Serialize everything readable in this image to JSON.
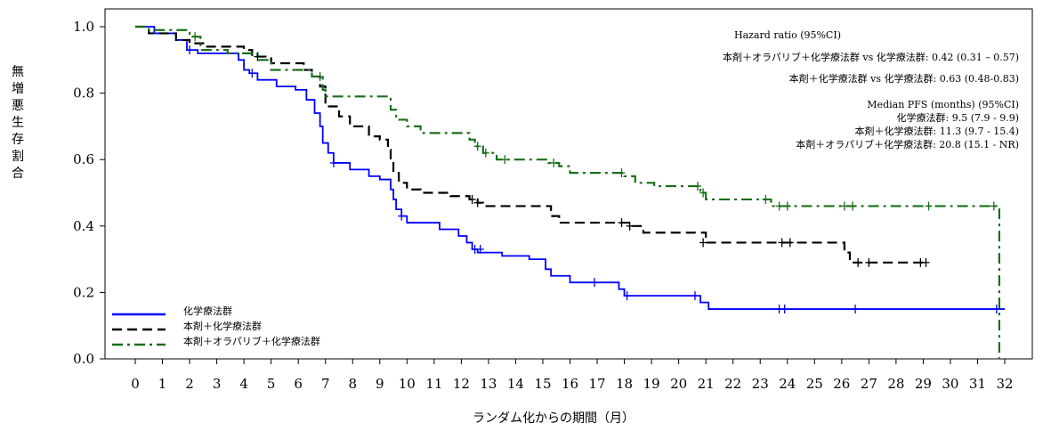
{
  "chart_data": {
    "type": "line",
    "subtype": "kaplan-meier",
    "title": "",
    "xlabel": "ランダム化からの期間（月）",
    "ylabel": "無増悪生存割合",
    "xlim": [
      -1,
      32.6
    ],
    "ylim": [
      0,
      1.05
    ],
    "x_ticks": [
      0,
      1,
      2,
      3,
      4,
      5,
      6,
      7,
      8,
      9,
      10,
      11,
      12,
      13,
      14,
      15,
      16,
      17,
      18,
      19,
      20,
      21,
      22,
      23,
      24,
      25,
      26,
      27,
      28,
      29,
      30,
      31,
      32
    ],
    "x_tick_labels": [
      "0",
      "1",
      "2",
      "3",
      "4",
      "5",
      "6",
      "7",
      "8",
      "9",
      "10",
      "11",
      "12",
      "13",
      "14",
      "15",
      "16",
      "17",
      "18",
      "19",
      "20",
      "21",
      "22",
      "23",
      "24",
      "25",
      "26",
      "27",
      "28",
      "29",
      "30",
      "31",
      "32"
    ],
    "y_ticks": [
      0,
      0.2,
      0.4,
      0.6,
      0.8,
      1.0
    ],
    "y_tick_labels": [
      "0.0",
      "0.2",
      "0.4",
      "0.6",
      "0.8",
      "1.0"
    ],
    "grid": false,
    "legend_position": "bottom-left",
    "annotations": [
      "Hazard ratio (95%CI)",
      "本剤＋オラパリブ＋化学療法群  vs  化学療法群: 0.42 (0.31 – 0.57)",
      "本剤＋化学療法群  vs  化学療法群: 0.63 (0.48-0.83)",
      "Median  PFS  (months)  (95%CI)",
      "化学療法群: 9.5 (7.9  -  9.9)",
      "本剤＋化学療法群: 11.3 (9.7  -  15.4)",
      "本剤＋オラパリブ＋化学療法群: 20.8 (15.1  -  NR)"
    ],
    "series": [
      {
        "name": "化学療法群",
        "color": "#0000ff",
        "line_style": "solid",
        "x": [
          0,
          0.7,
          1.5,
          1.9,
          2.3,
          3.8,
          4.0,
          4.2,
          4.5,
          5.2,
          5.9,
          6.3,
          6.6,
          6.8,
          6.9,
          7.1,
          7.3,
          7.9,
          8.6,
          9.0,
          9.4,
          9.5,
          9.6,
          9.8,
          10.0,
          11.2,
          11.9,
          12.2,
          12.4,
          12.6,
          13.5,
          14.5,
          15.1,
          15.3,
          16.0,
          17.2,
          17.8,
          18.0,
          20.5,
          20.8,
          21.1,
          32.0
        ],
        "y": [
          1.0,
          0.98,
          0.96,
          0.93,
          0.92,
          0.9,
          0.87,
          0.86,
          0.84,
          0.82,
          0.81,
          0.78,
          0.74,
          0.7,
          0.65,
          0.62,
          0.59,
          0.57,
          0.55,
          0.54,
          0.51,
          0.48,
          0.45,
          0.43,
          0.41,
          0.39,
          0.37,
          0.35,
          0.33,
          0.32,
          0.31,
          0.3,
          0.27,
          0.25,
          0.23,
          0.23,
          0.21,
          0.19,
          0.19,
          0.17,
          0.15,
          0.15
        ],
        "censored": [
          [
            2.0,
            0.93
          ],
          [
            4.3,
            0.86
          ],
          [
            7.3,
            0.59
          ],
          [
            9.8,
            0.43
          ],
          [
            12.5,
            0.33
          ],
          [
            12.7,
            0.33
          ],
          [
            16.9,
            0.23
          ],
          [
            18.1,
            0.19
          ],
          [
            20.6,
            0.19
          ],
          [
            23.7,
            0.15
          ],
          [
            23.9,
            0.15
          ],
          [
            26.5,
            0.15
          ],
          [
            31.7,
            0.15
          ]
        ]
      },
      {
        "name": "本剤＋化学療法群",
        "color": "#000000",
        "line_style": "dashed",
        "x": [
          0,
          0.5,
          1.5,
          2.0,
          2.5,
          4.0,
          4.3,
          5.0,
          6.2,
          6.5,
          6.8,
          7.0,
          7.5,
          7.9,
          8.6,
          9.0,
          9.3,
          9.4,
          9.5,
          9.7,
          10.0,
          10.5,
          11.6,
          12.3,
          12.6,
          12.8,
          15.3,
          15.6,
          16.0,
          17.9,
          18.3,
          18.7,
          20.8,
          21.0,
          26.1,
          26.3,
          29.0
        ],
        "y": [
          1.0,
          0.98,
          0.96,
          0.95,
          0.94,
          0.93,
          0.91,
          0.89,
          0.87,
          0.85,
          0.82,
          0.76,
          0.73,
          0.7,
          0.67,
          0.66,
          0.63,
          0.59,
          0.56,
          0.53,
          0.51,
          0.5,
          0.49,
          0.48,
          0.47,
          0.46,
          0.43,
          0.41,
          0.41,
          0.41,
          0.4,
          0.38,
          0.38,
          0.35,
          0.32,
          0.29,
          0.29
        ],
        "censored": [
          [
            4.5,
            0.91
          ],
          [
            12.4,
            0.48
          ],
          [
            12.6,
            0.47
          ],
          [
            17.9,
            0.41
          ],
          [
            18.2,
            0.4
          ],
          [
            20.9,
            0.35
          ],
          [
            23.8,
            0.35
          ],
          [
            24.1,
            0.35
          ],
          [
            26.6,
            0.29
          ],
          [
            27.0,
            0.29
          ],
          [
            28.9,
            0.29
          ],
          [
            29.1,
            0.29
          ]
        ]
      },
      {
        "name": "本剤＋オラパリブ＋化学療法群",
        "color": "#1a6e1a",
        "line_style": "dash-dot",
        "x": [
          0,
          0.5,
          2.0,
          2.4,
          3.4,
          4.5,
          5.0,
          6.5,
          6.9,
          7.0,
          9.4,
          9.6,
          10.0,
          10.5,
          11.5,
          12.3,
          12.5,
          12.8,
          13.3,
          15.2,
          15.6,
          16.0,
          18.0,
          18.4,
          19.1,
          20.8,
          21.0,
          22.9,
          23.4,
          31.8,
          31.8
        ],
        "y": [
          1.0,
          0.99,
          0.97,
          0.93,
          0.92,
          0.9,
          0.87,
          0.85,
          0.81,
          0.79,
          0.75,
          0.72,
          0.7,
          0.68,
          0.68,
          0.66,
          0.64,
          0.62,
          0.6,
          0.59,
          0.58,
          0.56,
          0.55,
          0.53,
          0.52,
          0.5,
          0.48,
          0.48,
          0.46,
          0.46,
          0.0
        ],
        "censored": [
          [
            2.2,
            0.97
          ],
          [
            6.8,
            0.85
          ],
          [
            12.6,
            0.64
          ],
          [
            12.9,
            0.62
          ],
          [
            13.6,
            0.6
          ],
          [
            15.4,
            0.59
          ],
          [
            17.9,
            0.56
          ],
          [
            20.7,
            0.52
          ],
          [
            20.9,
            0.5
          ],
          [
            23.2,
            0.48
          ],
          [
            23.7,
            0.46
          ],
          [
            24.0,
            0.46
          ],
          [
            26.1,
            0.46
          ],
          [
            26.4,
            0.46
          ],
          [
            29.2,
            0.46
          ],
          [
            31.6,
            0.46
          ]
        ]
      }
    ]
  }
}
